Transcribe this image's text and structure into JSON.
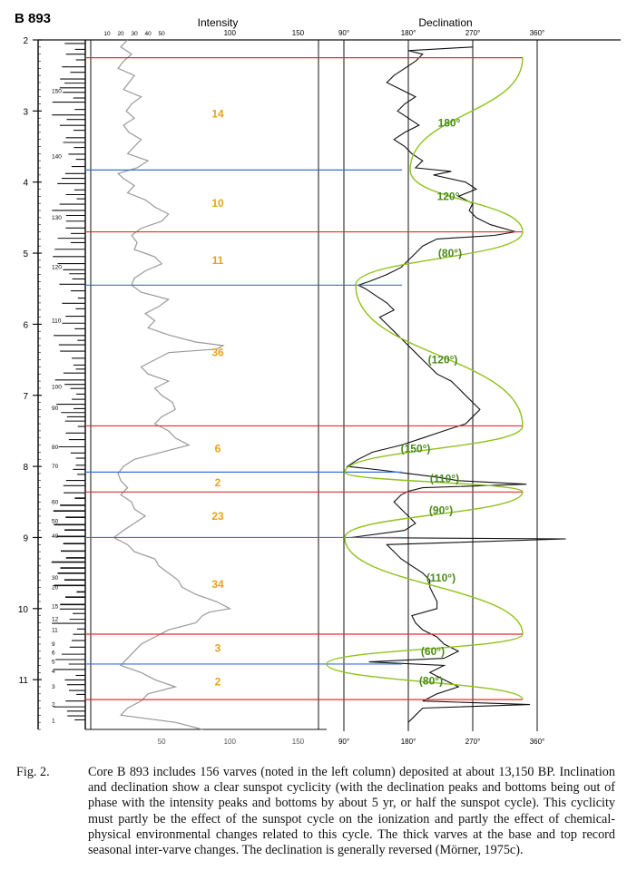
{
  "chart_data": {
    "type": "line",
    "core_label": "B 893",
    "intensity_title": "Intensity",
    "declination_title": "Declination",
    "depth_ticks": [
      "2",
      "3",
      "4",
      "5",
      "6",
      "7",
      "8",
      "9",
      "10",
      "11"
    ],
    "depth_range": [
      2,
      11.7
    ],
    "intensity_top_ticks": [
      "10",
      "20",
      "30",
      "40",
      "50",
      "100",
      "150"
    ],
    "intensity_bottom_ticks": [
      "50",
      "100",
      "150"
    ],
    "intensity_range": [
      0,
      165
    ],
    "declination_ticks_top": [
      "90°",
      "180°",
      "270°",
      "360°"
    ],
    "declination_ticks_bottom": [
      "90°",
      "180°",
      "270°",
      "360°"
    ],
    "declination_range": [
      90,
      360
    ],
    "varve_labels": [
      {
        "label": "150",
        "depth": 2.72
      },
      {
        "label": "140",
        "depth": 3.64
      },
      {
        "label": "130",
        "depth": 4.5
      },
      {
        "label": "120",
        "depth": 5.2
      },
      {
        "label": "110",
        "depth": 5.95
      },
      {
        "label": "100",
        "depth": 6.88
      },
      {
        "label": "90",
        "depth": 7.18
      },
      {
        "label": "80",
        "depth": 7.73
      },
      {
        "label": "70",
        "depth": 8.0
      },
      {
        "label": "60",
        "depth": 8.5
      },
      {
        "label": "50",
        "depth": 8.77
      },
      {
        "label": "40",
        "depth": 8.98
      },
      {
        "label": "30",
        "depth": 9.57
      },
      {
        "label": "20",
        "depth": 9.7
      },
      {
        "label": "15",
        "depth": 9.97
      },
      {
        "label": "12",
        "depth": 10.15
      },
      {
        "label": "11",
        "depth": 10.3
      },
      {
        "label": "9",
        "depth": 10.5
      },
      {
        "label": "6",
        "depth": 10.62
      },
      {
        "label": "5",
        "depth": 10.75
      },
      {
        "label": "4",
        "depth": 10.88
      },
      {
        "label": "3",
        "depth": 11.1
      },
      {
        "label": "2",
        "depth": 11.35
      },
      {
        "label": "1",
        "depth": 11.58
      }
    ],
    "intensity": {
      "depth": [
        2.0,
        2.1,
        2.2,
        2.3,
        2.4,
        2.5,
        2.6,
        2.7,
        2.8,
        2.9,
        3.0,
        3.1,
        3.2,
        3.3,
        3.4,
        3.5,
        3.6,
        3.7,
        3.8,
        3.88,
        3.95,
        4.05,
        4.15,
        4.25,
        4.35,
        4.45,
        4.55,
        4.65,
        4.75,
        4.85,
        4.95,
        5.05,
        5.15,
        5.25,
        5.35,
        5.45,
        5.55,
        5.65,
        5.75,
        5.85,
        5.95,
        6.05,
        6.15,
        6.25,
        6.3,
        6.35,
        6.4,
        6.5,
        6.6,
        6.7,
        6.8,
        6.9,
        7.0,
        7.1,
        7.2,
        7.3,
        7.4,
        7.5,
        7.6,
        7.7,
        7.8,
        7.9,
        8.0,
        8.1,
        8.2,
        8.3,
        8.4,
        8.5,
        8.6,
        8.7,
        8.8,
        8.9,
        9.0,
        9.1,
        9.2,
        9.3,
        9.4,
        9.5,
        9.6,
        9.7,
        9.8,
        9.9,
        10.0,
        10.05,
        10.1,
        10.2,
        10.3,
        10.4,
        10.5,
        10.6,
        10.7,
        10.8,
        10.9,
        11.0,
        11.1,
        11.2,
        11.3,
        11.4,
        11.5,
        11.6,
        11.7
      ],
      "value": [
        25,
        20,
        28,
        22,
        18,
        30,
        26,
        22,
        35,
        28,
        24,
        30,
        22,
        26,
        35,
        30,
        25,
        40,
        32,
        18,
        22,
        30,
        25,
        38,
        45,
        55,
        50,
        35,
        28,
        32,
        30,
        45,
        50,
        38,
        30,
        28,
        35,
        55,
        48,
        38,
        45,
        40,
        55,
        75,
        95,
        90,
        55,
        45,
        35,
        40,
        55,
        45,
        50,
        58,
        60,
        50,
        45,
        55,
        60,
        70,
        50,
        30,
        22,
        18,
        20,
        25,
        20,
        28,
        30,
        38,
        30,
        22,
        15,
        25,
        30,
        45,
        48,
        55,
        62,
        65,
        75,
        90,
        100,
        85,
        80,
        75,
        55,
        45,
        35,
        30,
        25,
        20,
        35,
        45,
        60,
        40,
        35,
        25,
        20,
        60,
        80
      ]
    },
    "declination": {
      "depth": [
        2.1,
        2.15,
        2.2,
        2.3,
        2.4,
        2.5,
        2.6,
        2.7,
        2.8,
        2.9,
        3.0,
        3.1,
        3.2,
        3.3,
        3.4,
        3.5,
        3.6,
        3.7,
        3.8,
        3.85,
        3.9,
        4.0,
        4.1,
        4.2,
        4.3,
        4.4,
        4.5,
        4.6,
        4.7,
        4.75,
        4.8,
        4.9,
        5.0,
        5.1,
        5.2,
        5.3,
        5.4,
        5.45,
        5.5,
        5.6,
        5.7,
        5.8,
        5.9,
        6.0,
        6.1,
        6.2,
        6.3,
        6.4,
        6.5,
        6.6,
        6.7,
        6.8,
        6.9,
        7.0,
        7.1,
        7.2,
        7.3,
        7.4,
        7.5,
        7.6,
        7.7,
        7.8,
        7.9,
        8.0,
        8.05,
        8.1,
        8.15,
        8.2,
        8.25,
        8.3,
        8.35,
        8.4,
        8.5,
        8.6,
        8.7,
        8.8,
        8.9,
        9.0,
        9.02,
        9.1,
        9.2,
        9.3,
        9.4,
        9.5,
        9.6,
        9.7,
        9.8,
        9.9,
        10.0,
        10.1,
        10.2,
        10.3,
        10.4,
        10.5,
        10.6,
        10.7,
        10.75,
        10.8,
        10.9,
        11.0,
        11.1,
        11.2,
        11.3,
        11.35,
        11.4,
        11.5,
        11.6,
        11.7
      ],
      "value": [
        270,
        180,
        200,
        190,
        175,
        160,
        150,
        170,
        190,
        175,
        165,
        180,
        195,
        175,
        160,
        175,
        185,
        200,
        190,
        240,
        215,
        260,
        275,
        250,
        270,
        265,
        275,
        295,
        330,
        300,
        220,
        200,
        190,
        180,
        170,
        150,
        125,
        110,
        120,
        135,
        150,
        160,
        140,
        150,
        160,
        170,
        180,
        190,
        200,
        210,
        220,
        240,
        250,
        260,
        270,
        280,
        270,
        260,
        230,
        200,
        170,
        130,
        110,
        95,
        140,
        180,
        220,
        250,
        345,
        200,
        180,
        170,
        160,
        170,
        180,
        190,
        175,
        100,
        400,
        150,
        160,
        170,
        185,
        200,
        210,
        210,
        215,
        220,
        220,
        185,
        190,
        200,
        220,
        230,
        250,
        230,
        125,
        230,
        210,
        230,
        250,
        220,
        200,
        350,
        200,
        190,
        180,
        180
      ]
    },
    "peaks": [
      {
        "depth": 2.25,
        "color": "red"
      },
      {
        "depth": 3.83,
        "color": "blue"
      },
      {
        "depth": 4.7,
        "color": "red"
      },
      {
        "depth": 5.45,
        "color": "blue"
      },
      {
        "depth": 7.43,
        "color": "red"
      },
      {
        "depth": 8.08,
        "color": "blue"
      },
      {
        "depth": 8.36,
        "color": "red"
      },
      {
        "depth": 9.0,
        "color": "blue"
      },
      {
        "depth": 10.36,
        "color": "red"
      },
      {
        "depth": 10.78,
        "color": "blue"
      },
      {
        "depth": 11.28,
        "color": "red"
      }
    ],
    "interval_labels": [
      {
        "label": "14",
        "depth": 3.04
      },
      {
        "label": "10",
        "depth": 4.3
      },
      {
        "label": "11",
        "depth": 5.1
      },
      {
        "label": "36",
        "depth": 6.4
      },
      {
        "label": "6",
        "depth": 7.75
      },
      {
        "label": "2",
        "depth": 8.23
      },
      {
        "label": "23",
        "depth": 8.7
      },
      {
        "label": "34",
        "depth": 9.66
      },
      {
        "label": "3",
        "depth": 10.56
      },
      {
        "label": "2",
        "depth": 11.03
      }
    ],
    "cycle_labels": [
      {
        "label": "180°",
        "depth": 3.17
      },
      {
        "label": "120°",
        "depth": 4.2
      },
      {
        "label": "(80°)",
        "depth": 5.0
      },
      {
        "label": "(120°)",
        "depth": 6.5
      },
      {
        "label": "(150°)",
        "depth": 7.75
      },
      {
        "label": "(110°)",
        "depth": 8.17
      },
      {
        "label": "(90°)",
        "depth": 8.62
      },
      {
        "label": "(110°)",
        "depth": 9.57
      },
      {
        "label": "(60°)",
        "depth": 10.6
      },
      {
        "label": "(80°)",
        "depth": 11.02
      }
    ]
  },
  "caption": {
    "label": "Fig. 2.",
    "text": "Core B 893 includes 156 varves (noted in the left column) deposited at about 13,150 BP. Inclination and declination show a clear sunspot cyclicity (with the declination peaks and bottoms being out of phase with the intensity peaks and bottoms by about 5 yr, or half the sunspot cycle). This cyclicity must partly be the effect of the sunspot cycle on the ionization and partly the effect of chemical-physical environmental changes related to this cycle. The thick varves at the base and top record seasonal inter-varve changes. The declination is generally reversed (Mörner, 1975c)."
  },
  "colors": {
    "peak_red": "#e03030",
    "peak_blue": "#3a6fd8",
    "interval_orange": "#e8a317",
    "cycle_green": "#8fc21b",
    "cycle_label_green": "#4a8a1a",
    "intensity_gray": "#999999",
    "declination_black": "#111111"
  }
}
